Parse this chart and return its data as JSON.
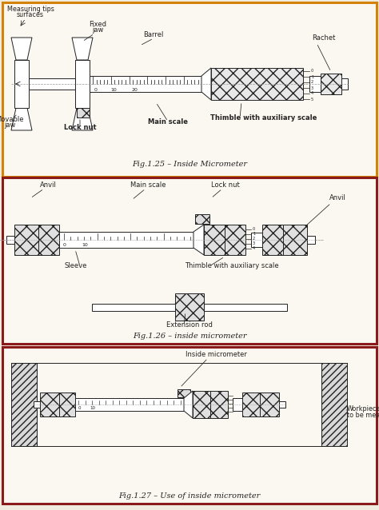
{
  "fig_width": 4.74,
  "fig_height": 6.38,
  "dpi": 100,
  "bg_color": "#f0ece0",
  "box1_color": "#d4820a",
  "box2_color": "#8b1a1a",
  "box3_color": "#8b1a1a",
  "fig1_caption": "Fig.1.25 – Inside Micrometer",
  "fig2_caption": "Fig.1.26 – inside micrometer",
  "fig3_caption": "Fig.1.27 – Use of inside micrometer",
  "line_color": "#222222",
  "text_color": "#111111",
  "inner_bg": "#faf8f0"
}
